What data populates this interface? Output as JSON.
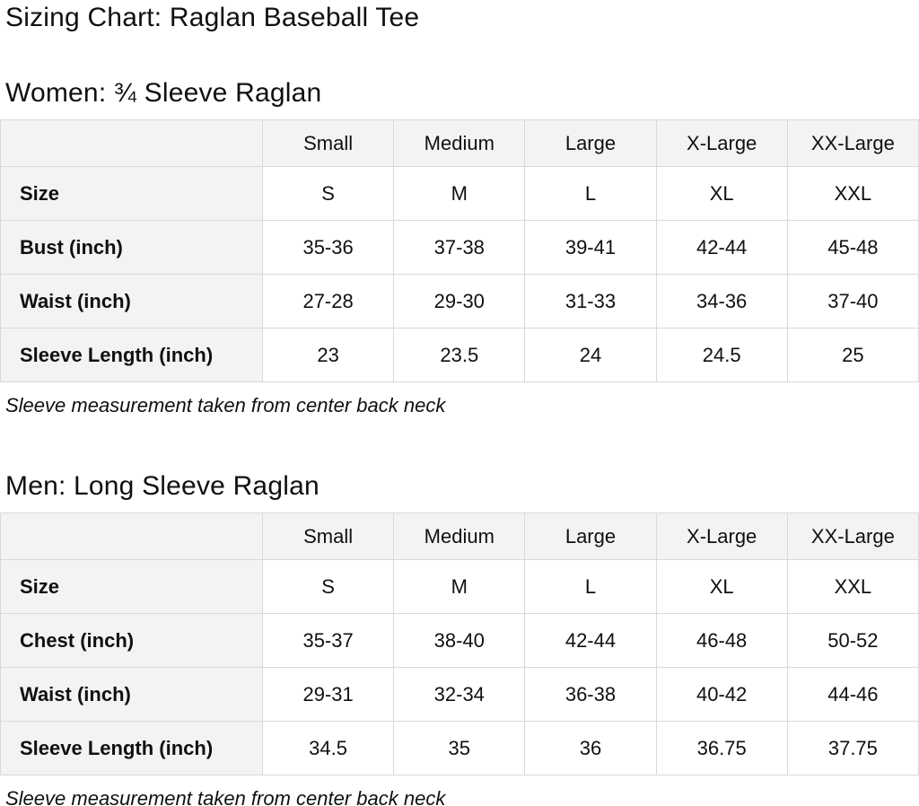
{
  "page": {
    "title": "Sizing Chart: Raglan Baseball Tee"
  },
  "colors": {
    "text": "#0f1111",
    "table_border": "#d9d9d9",
    "header_background": "#f3f3f3",
    "cell_background": "#ffffff"
  },
  "sections": [
    {
      "id": "women",
      "heading": "Women: ¾ Sleeve Raglan",
      "footnote": "Sleeve measurement taken from center back neck",
      "table": {
        "columns": [
          "",
          "Small",
          "Medium",
          "Large",
          "X-Large",
          "XX-Large"
        ],
        "rows": [
          {
            "label": "Size",
            "values": [
              "S",
              "M",
              "L",
              "XL",
              "XXL"
            ]
          },
          {
            "label": "Bust (inch)",
            "values": [
              "35-36",
              "37-38",
              "39-41",
              "42-44",
              "45-48"
            ]
          },
          {
            "label": "Waist (inch)",
            "values": [
              "27-28",
              "29-30",
              "31-33",
              "34-36",
              "37-40"
            ]
          },
          {
            "label": "Sleeve Length (inch)",
            "values": [
              "23",
              "23.5",
              "24",
              "24.5",
              "25"
            ]
          }
        ]
      }
    },
    {
      "id": "men",
      "heading": "Men: Long Sleeve Raglan",
      "footnote": "Sleeve measurement taken from center back neck",
      "table": {
        "columns": [
          "",
          "Small",
          "Medium",
          "Large",
          "X-Large",
          "XX-Large"
        ],
        "rows": [
          {
            "label": "Size",
            "values": [
              "S",
              "M",
              "L",
              "XL",
              "XXL"
            ]
          },
          {
            "label": "Chest (inch)",
            "values": [
              "35-37",
              "38-40",
              "42-44",
              "46-48",
              "50-52"
            ]
          },
          {
            "label": "Waist (inch)",
            "values": [
              "29-31",
              "32-34",
              "36-38",
              "40-42",
              "44-46"
            ]
          },
          {
            "label": "Sleeve Length (inch)",
            "values": [
              "34.5",
              "35",
              "36",
              "36.75",
              "37.75"
            ]
          }
        ]
      }
    }
  ]
}
